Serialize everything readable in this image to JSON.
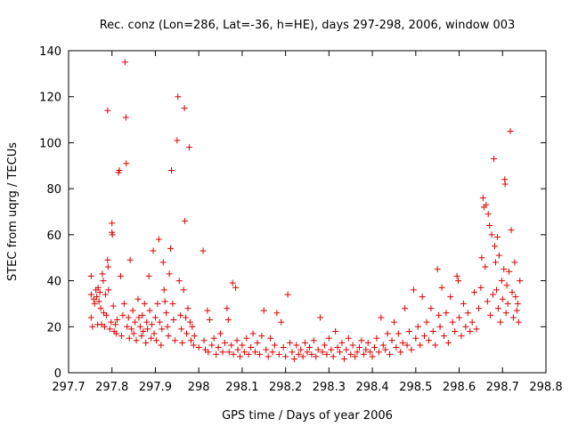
{
  "chart_data": {
    "type": "scatter",
    "title": "Rec. conz (Lon=286, Lat=-36, h=HE), days 297-298, 2006, window 003",
    "xlabel": "GPS time / Days of year 2006",
    "ylabel": "STEC from uqrg / TECUs",
    "xlim": [
      297.7,
      298.8
    ],
    "ylim": [
      0,
      140
    ],
    "x_ticks": [
      297.7,
      297.8,
      297.9,
      298,
      298.1,
      298.2,
      298.3,
      298.4,
      298.5,
      298.6,
      298.7,
      298.8
    ],
    "x_tick_labels": [
      "297.7",
      "297.8",
      "297.9",
      "298",
      "298.1",
      "298.2",
      "298.3",
      "298.4",
      "298.5",
      "298.6",
      "298.7",
      "298.8"
    ],
    "y_ticks": [
      0,
      20,
      40,
      60,
      80,
      100,
      120,
      140
    ],
    "y_tick_labels": [
      "0",
      "20",
      "40",
      "60",
      "80",
      "100",
      "120",
      "140"
    ],
    "grid": false,
    "marker": "plus",
    "marker_color": "#dd0000",
    "series": [
      {
        "points": [
          [
            297.752,
            42
          ],
          [
            297.752,
            34
          ],
          [
            297.752,
            24
          ],
          [
            297.755,
            20
          ],
          [
            297.758,
            32
          ],
          [
            297.76,
            30
          ],
          [
            297.763,
            36
          ],
          [
            297.765,
            33
          ],
          [
            297.767,
            21
          ],
          [
            297.768,
            37
          ],
          [
            297.77,
            31
          ],
          [
            297.772,
            35
          ],
          [
            297.774,
            28
          ],
          [
            297.776,
            21
          ],
          [
            297.778,
            43
          ],
          [
            297.78,
            40
          ],
          [
            297.781,
            26
          ],
          [
            297.783,
            20
          ],
          [
            297.785,
            34
          ],
          [
            297.787,
            25
          ],
          [
            297.79,
            114
          ],
          [
            297.79,
            49
          ],
          [
            297.791,
            46
          ],
          [
            297.792,
            36
          ],
          [
            297.795,
            19
          ],
          [
            297.798,
            22
          ],
          [
            297.8,
            65
          ],
          [
            297.8,
            61
          ],
          [
            297.801,
            60
          ],
          [
            297.803,
            29
          ],
          [
            297.805,
            18
          ],
          [
            297.808,
            21
          ],
          [
            297.81,
            17
          ],
          [
            297.812,
            23
          ],
          [
            297.815,
            87
          ],
          [
            297.817,
            88
          ],
          [
            297.82,
            42
          ],
          [
            297.822,
            16
          ],
          [
            297.825,
            25
          ],
          [
            297.828,
            30
          ],
          [
            297.83,
            135
          ],
          [
            297.832,
            111
          ],
          [
            297.833,
            91
          ],
          [
            297.835,
            20
          ],
          [
            297.838,
            24
          ],
          [
            297.84,
            15
          ],
          [
            297.842,
            49
          ],
          [
            297.845,
            19
          ],
          [
            297.848,
            27
          ],
          [
            297.85,
            17
          ],
          [
            297.853,
            22
          ],
          [
            297.856,
            14
          ],
          [
            297.86,
            32
          ],
          [
            297.862,
            24
          ],
          [
            297.865,
            20
          ],
          [
            297.868,
            16
          ],
          [
            297.87,
            25
          ],
          [
            297.872,
            18
          ],
          [
            297.875,
            30
          ],
          [
            297.878,
            13
          ],
          [
            297.88,
            22
          ],
          [
            297.882,
            19
          ],
          [
            297.885,
            42
          ],
          [
            297.887,
            27
          ],
          [
            297.89,
            15
          ],
          [
            297.892,
            21
          ],
          [
            297.895,
            53
          ],
          [
            297.897,
            17
          ],
          [
            297.9,
            24
          ],
          [
            297.902,
            14
          ],
          [
            297.905,
            30
          ],
          [
            297.908,
            58
          ],
          [
            297.91,
            22
          ],
          [
            297.913,
            12
          ],
          [
            297.915,
            19
          ],
          [
            297.918,
            48
          ],
          [
            297.92,
            36
          ],
          [
            297.922,
            31
          ],
          [
            297.925,
            26
          ],
          [
            297.928,
            20
          ],
          [
            297.93,
            16
          ],
          [
            297.932,
            43
          ],
          [
            297.935,
            54
          ],
          [
            297.937,
            88
          ],
          [
            297.94,
            30
          ],
          [
            297.942,
            23
          ],
          [
            297.945,
            14
          ],
          [
            297.95,
            101
          ],
          [
            297.952,
            120
          ],
          [
            297.955,
            40
          ],
          [
            297.958,
            25
          ],
          [
            297.96,
            19
          ],
          [
            297.962,
            13
          ],
          [
            297.965,
            36
          ],
          [
            297.967,
            115
          ],
          [
            297.968,
            66
          ],
          [
            297.97,
            24
          ],
          [
            297.972,
            17
          ],
          [
            297.975,
            28
          ],
          [
            297.978,
            98
          ],
          [
            297.98,
            22
          ],
          [
            297.982,
            14
          ],
          [
            297.985,
            20
          ],
          [
            297.988,
            12
          ],
          [
            297.99,
            16
          ],
          [
            298.0,
            11
          ],
          [
            298.01,
            53
          ],
          [
            298.012,
            14
          ],
          [
            298.015,
            10
          ],
          [
            298.02,
            27
          ],
          [
            298.022,
            9
          ],
          [
            298.025,
            23
          ],
          [
            298.03,
            12
          ],
          [
            298.035,
            15
          ],
          [
            298.04,
            8
          ],
          [
            298.045,
            11
          ],
          [
            298.05,
            17
          ],
          [
            298.055,
            9
          ],
          [
            298.06,
            13
          ],
          [
            298.065,
            28
          ],
          [
            298.068,
            23
          ],
          [
            298.07,
            9
          ],
          [
            298.075,
            12
          ],
          [
            298.078,
            39
          ],
          [
            298.08,
            8
          ],
          [
            298.085,
            37
          ],
          [
            298.088,
            14
          ],
          [
            298.09,
            10
          ],
          [
            298.095,
            7
          ],
          [
            298.1,
            12
          ],
          [
            298.105,
            9
          ],
          [
            298.11,
            15
          ],
          [
            298.115,
            8
          ],
          [
            298.12,
            11
          ],
          [
            298.125,
            17
          ],
          [
            298.13,
            9
          ],
          [
            298.135,
            13
          ],
          [
            298.14,
            8
          ],
          [
            298.145,
            16
          ],
          [
            298.15,
            27
          ],
          [
            298.155,
            10
          ],
          [
            298.16,
            7
          ],
          [
            298.165,
            15
          ],
          [
            298.17,
            9
          ],
          [
            298.175,
            12
          ],
          [
            298.18,
            26
          ],
          [
            298.185,
            8
          ],
          [
            298.19,
            22
          ],
          [
            298.195,
            11
          ],
          [
            298.2,
            7
          ],
          [
            298.205,
            34
          ],
          [
            298.21,
            13
          ],
          [
            298.215,
            9
          ],
          [
            298.22,
            6
          ],
          [
            298.225,
            12
          ],
          [
            298.23,
            8
          ],
          [
            298.235,
            10
          ],
          [
            298.24,
            7
          ],
          [
            298.245,
            13
          ],
          [
            298.25,
            9
          ],
          [
            298.255,
            11
          ],
          [
            298.26,
            8
          ],
          [
            298.265,
            14
          ],
          [
            298.27,
            7
          ],
          [
            298.275,
            10
          ],
          [
            298.28,
            24
          ],
          [
            298.285,
            9
          ],
          [
            298.29,
            12
          ],
          [
            298.295,
            8
          ],
          [
            298.3,
            15
          ],
          [
            298.305,
            10
          ],
          [
            298.31,
            7
          ],
          [
            298.315,
            18
          ],
          [
            298.32,
            11
          ],
          [
            298.325,
            9
          ],
          [
            298.33,
            13
          ],
          [
            298.335,
            6
          ],
          [
            298.34,
            10
          ],
          [
            298.345,
            15
          ],
          [
            298.35,
            8
          ],
          [
            298.355,
            12
          ],
          [
            298.36,
            7
          ],
          [
            298.365,
            9
          ],
          [
            298.37,
            11
          ],
          [
            298.375,
            14
          ],
          [
            298.38,
            8
          ],
          [
            298.385,
            10
          ],
          [
            298.39,
            13
          ],
          [
            298.395,
            9
          ],
          [
            298.4,
            7
          ],
          [
            298.405,
            11
          ],
          [
            298.41,
            15
          ],
          [
            298.415,
            9
          ],
          [
            298.42,
            24
          ],
          [
            298.425,
            12
          ],
          [
            298.43,
            10
          ],
          [
            298.435,
            17
          ],
          [
            298.44,
            8
          ],
          [
            298.445,
            14
          ],
          [
            298.45,
            22
          ],
          [
            298.455,
            11
          ],
          [
            298.46,
            17
          ],
          [
            298.465,
            9
          ],
          [
            298.47,
            13
          ],
          [
            298.475,
            28
          ],
          [
            298.48,
            12
          ],
          [
            298.485,
            18
          ],
          [
            298.49,
            10
          ],
          [
            298.495,
            36
          ],
          [
            298.5,
            15
          ],
          [
            298.505,
            20
          ],
          [
            298.51,
            12
          ],
          [
            298.515,
            33
          ],
          [
            298.52,
            16
          ],
          [
            298.525,
            22
          ],
          [
            298.53,
            14
          ],
          [
            298.535,
            28
          ],
          [
            298.54,
            18
          ],
          [
            298.545,
            12
          ],
          [
            298.55,
            45
          ],
          [
            298.553,
            25
          ],
          [
            298.556,
            20
          ],
          [
            298.56,
            37
          ],
          [
            298.565,
            16
          ],
          [
            298.57,
            26
          ],
          [
            298.575,
            13
          ],
          [
            298.58,
            33
          ],
          [
            298.585,
            22
          ],
          [
            298.59,
            18
          ],
          [
            298.595,
            42
          ],
          [
            298.598,
            40
          ],
          [
            298.6,
            24
          ],
          [
            298.605,
            16
          ],
          [
            298.61,
            30
          ],
          [
            298.615,
            20
          ],
          [
            298.62,
            26
          ],
          [
            298.625,
            18
          ],
          [
            298.63,
            22
          ],
          [
            298.635,
            35
          ],
          [
            298.64,
            19
          ],
          [
            298.645,
            28
          ],
          [
            298.65,
            37
          ],
          [
            298.652,
            50
          ],
          [
            298.655,
            76
          ],
          [
            298.657,
            72
          ],
          [
            298.66,
            46
          ],
          [
            298.662,
            73
          ],
          [
            298.665,
            31
          ],
          [
            298.667,
            69
          ],
          [
            298.67,
            64
          ],
          [
            298.672,
            25
          ],
          [
            298.675,
            60
          ],
          [
            298.678,
            34
          ],
          [
            298.68,
            93
          ],
          [
            298.682,
            55
          ],
          [
            298.684,
            48
          ],
          [
            298.686,
            36
          ],
          [
            298.688,
            59
          ],
          [
            298.69,
            28
          ],
          [
            298.692,
            51
          ],
          [
            298.695,
            22
          ],
          [
            298.698,
            40
          ],
          [
            298.7,
            32
          ],
          [
            298.703,
            45
          ],
          [
            298.705,
            84
          ],
          [
            298.706,
            82
          ],
          [
            298.708,
            26
          ],
          [
            298.71,
            38
          ],
          [
            298.712,
            30
          ],
          [
            298.715,
            44
          ],
          [
            298.718,
            105
          ],
          [
            298.72,
            62
          ],
          [
            298.722,
            35
          ],
          [
            298.725,
            24
          ],
          [
            298.728,
            48
          ],
          [
            298.73,
            33
          ],
          [
            298.733,
            27
          ],
          [
            298.735,
            30
          ],
          [
            298.737,
            22
          ],
          [
            298.74,
            40
          ]
        ]
      }
    ]
  }
}
